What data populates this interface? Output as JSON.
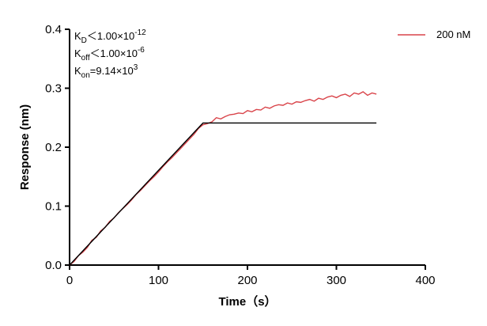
{
  "chart_data": {
    "type": "line",
    "xlabel": "Time（s）",
    "ylabel": "Response (nm)",
    "xlim": [
      0,
      400
    ],
    "ylim": [
      0,
      0.4
    ],
    "xticks": [
      0,
      100,
      200,
      300,
      400
    ],
    "yticks": [
      {
        "value": 0,
        "label": "0.0"
      },
      0.1,
      0.2,
      0.3,
      0.4
    ],
    "grid": false,
    "legend": "upper right",
    "annotations": [
      {
        "symbol": "K",
        "subscript": "D",
        "text": "＜1.00×10",
        "exponent": "-12"
      },
      {
        "symbol": "K",
        "subscript": "off",
        "text": "＜1.00×10",
        "exponent": "-6"
      },
      {
        "symbol": "K",
        "subscript": "on",
        "text": "=9.14×10",
        "exponent": "3"
      }
    ],
    "series": [
      {
        "name": "200 nM",
        "color": "#d9444a",
        "x": [
          0,
          5,
          10,
          15,
          20,
          25,
          30,
          35,
          40,
          45,
          50,
          55,
          60,
          65,
          70,
          75,
          80,
          85,
          90,
          95,
          100,
          105,
          110,
          115,
          120,
          125,
          130,
          135,
          140,
          145,
          150,
          155,
          160,
          165,
          170,
          175,
          180,
          185,
          190,
          195,
          200,
          205,
          210,
          215,
          220,
          225,
          230,
          235,
          240,
          245,
          250,
          255,
          260,
          265,
          270,
          275,
          280,
          285,
          290,
          295,
          300,
          305,
          310,
          315,
          320,
          325,
          330,
          335,
          340,
          345
        ],
        "values": [
          0.0,
          0.006,
          0.016,
          0.022,
          0.03,
          0.042,
          0.047,
          0.058,
          0.064,
          0.074,
          0.08,
          0.089,
          0.096,
          0.103,
          0.111,
          0.12,
          0.127,
          0.135,
          0.143,
          0.15,
          0.158,
          0.167,
          0.175,
          0.182,
          0.19,
          0.198,
          0.206,
          0.214,
          0.222,
          0.232,
          0.238,
          0.24,
          0.243,
          0.25,
          0.248,
          0.252,
          0.255,
          0.256,
          0.258,
          0.257,
          0.262,
          0.26,
          0.264,
          0.263,
          0.268,
          0.266,
          0.27,
          0.272,
          0.271,
          0.275,
          0.273,
          0.277,
          0.276,
          0.279,
          0.281,
          0.278,
          0.283,
          0.281,
          0.285,
          0.287,
          0.284,
          0.288,
          0.29,
          0.286,
          0.292,
          0.29,
          0.294,
          0.288,
          0.292,
          0.29
        ]
      },
      {
        "color": "#000000",
        "x": [
          0,
          150,
          345
        ],
        "values": [
          0,
          0.241,
          0.241
        ]
      }
    ]
  }
}
